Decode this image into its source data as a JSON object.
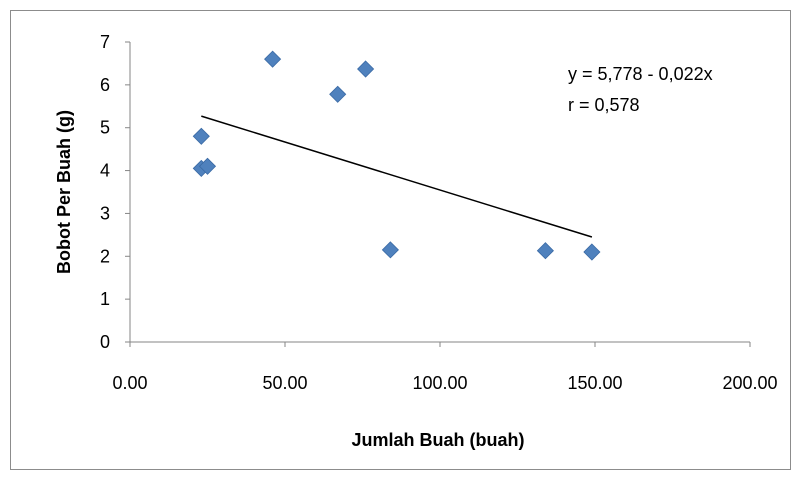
{
  "chart_data": {
    "type": "scatter",
    "xlabel": "Jumlah Buah (buah)",
    "ylabel": "Bobot Per Buah (g)",
    "xlim": [
      0,
      200
    ],
    "ylim": [
      0,
      7
    ],
    "x_ticks": [
      "0.00",
      "50.00",
      "100.00",
      "150.00",
      "200.00"
    ],
    "y_ticks": [
      "0",
      "1",
      "2",
      "3",
      "4",
      "5",
      "6",
      "7"
    ],
    "grid": false,
    "marker_color": "#4F81BD",
    "series": [
      {
        "points": [
          {
            "x": 23,
            "y": 4.8
          },
          {
            "x": 23,
            "y": 4.05
          },
          {
            "x": 25,
            "y": 4.1
          },
          {
            "x": 46,
            "y": 6.6
          },
          {
            "x": 67,
            "y": 5.78
          },
          {
            "x": 76,
            "y": 6.37
          },
          {
            "x": 84,
            "y": 2.15
          },
          {
            "x": 134,
            "y": 2.13
          },
          {
            "x": 149,
            "y": 2.1
          }
        ]
      }
    ],
    "trendline": {
      "x_start": 23,
      "y_start": 5.27,
      "x_end": 149,
      "y_end": 2.45,
      "color": "#000000"
    },
    "annotations": [
      "y = 5,778 - 0,022x",
      "r = 0,578"
    ]
  }
}
